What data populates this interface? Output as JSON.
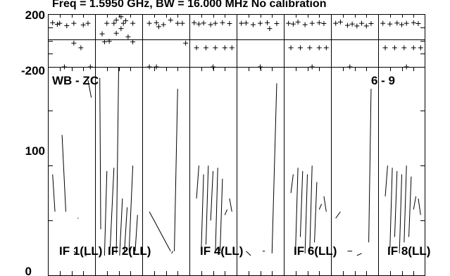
{
  "chart_data": {
    "type": "line",
    "title": "Freq = 1.5950 GHz, BW = 16.000 MHz  No calibration",
    "phase_panel": {
      "y_tick_labels": [
        "200",
        "-200"
      ],
      "ylim": [
        -200,
        200
      ]
    },
    "amp_panel": {
      "y_tick_labels": [
        "100",
        "0"
      ],
      "ylim": [
        0,
        190
      ]
    },
    "annotations": [
      "WB - ZC",
      "6 - 9"
    ],
    "panel_labels": [
      "IF 1(LL)",
      "IF 2(LL)",
      "IF 4(LL)",
      "IF 6(LL)",
      "IF 8(LL)"
    ],
    "channel_count": 8,
    "series": [
      {
        "phase": [
          [
            0.1,
            135
          ],
          [
            0.25,
            130
          ],
          [
            0.2,
            122
          ],
          [
            0.4,
            112
          ],
          [
            0.55,
            130
          ],
          [
            0.75,
            118
          ],
          [
            0.85,
            130
          ],
          [
            0.7,
            -55
          ],
          [
            0.55,
            -20
          ],
          [
            0.35,
            -200
          ],
          [
            0.9,
            -200
          ]
        ],
        "amplitude": [
          [
            0.1,
            92
          ],
          [
            0.15,
            58
          ],
          [
            0.3,
            128
          ],
          [
            0.38,
            58
          ],
          [
            0.55,
            22
          ],
          [
            0.6,
            20
          ],
          [
            0.63,
            52
          ],
          [
            0.65,
            52
          ],
          [
            0.78,
            18
          ],
          [
            0.82,
            18
          ],
          [
            0.85,
            178
          ],
          [
            0.92,
            162
          ],
          [
            0.95,
            168
          ]
        ]
      },
      {
        "phase": [
          [
            0.15,
            50
          ],
          [
            0.2,
            -10
          ],
          [
            0.3,
            -5
          ],
          [
            0.45,
            55
          ],
          [
            0.55,
            90
          ],
          [
            0.7,
            28
          ],
          [
            0.8,
            -10
          ],
          [
            0.25,
            130
          ],
          [
            0.4,
            130
          ],
          [
            0.6,
            130
          ],
          [
            0.8,
            130
          ],
          [
            0.55,
            180
          ],
          [
            0.45,
            155
          ],
          [
            0.65,
            150
          ]
        ],
        "amplitude": [
          [
            0.1,
            180
          ],
          [
            0.12,
            42
          ],
          [
            0.2,
            18
          ],
          [
            0.25,
            95
          ],
          [
            0.32,
            25
          ],
          [
            0.4,
            98
          ],
          [
            0.45,
            20
          ],
          [
            0.5,
            190
          ],
          [
            0.52,
            18
          ],
          [
            0.58,
            70
          ],
          [
            0.62,
            20
          ],
          [
            0.68,
            62
          ],
          [
            0.72,
            22
          ],
          [
            0.8,
            100
          ],
          [
            0.85,
            22
          ],
          [
            0.9,
            55
          ]
        ]
      },
      {
        "phase": [
          [
            0.15,
            130
          ],
          [
            0.3,
            135
          ],
          [
            0.45,
            120
          ],
          [
            0.6,
            155
          ],
          [
            0.75,
            130
          ],
          [
            0.85,
            130
          ],
          [
            0.35,
            105
          ],
          [
            0.92,
            -20
          ],
          [
            0.15,
            -200
          ],
          [
            0.3,
            -200
          ]
        ],
        "amplitude": [
          [
            0.15,
            58
          ],
          [
            0.6,
            22
          ],
          [
            0.62,
            20
          ],
          [
            0.65,
            22
          ],
          [
            0.68,
            22
          ],
          [
            0.75,
            170
          ],
          [
            0.85,
            172
          ]
        ]
      },
      {
        "phase": [
          [
            0.1,
            135
          ],
          [
            0.2,
            125
          ],
          [
            0.3,
            132
          ],
          [
            0.45,
            120
          ],
          [
            0.55,
            130
          ],
          [
            0.7,
            135
          ],
          [
            0.85,
            128
          ],
          [
            0.15,
            -55
          ],
          [
            0.35,
            -55
          ],
          [
            0.55,
            -55
          ],
          [
            0.75,
            -55
          ],
          [
            0.9,
            -55
          ],
          [
            0.5,
            -200
          ]
        ],
        "amplitude": [
          [
            0.15,
            70
          ],
          [
            0.2,
            100
          ],
          [
            0.25,
            22
          ],
          [
            0.3,
            92
          ],
          [
            0.35,
            28
          ],
          [
            0.4,
            100
          ],
          [
            0.45,
            50
          ],
          [
            0.5,
            95
          ],
          [
            0.55,
            20
          ],
          [
            0.6,
            98
          ],
          [
            0.65,
            22
          ],
          [
            0.7,
            88
          ],
          [
            0.75,
            55
          ],
          [
            0.8,
            60
          ],
          [
            0.85,
            70
          ],
          [
            0.9,
            58
          ]
        ]
      },
      {
        "phase": [
          [
            0.1,
            130
          ],
          [
            0.2,
            132
          ],
          [
            0.35,
            120
          ],
          [
            0.5,
            130
          ],
          [
            0.65,
            135
          ],
          [
            0.85,
            128
          ],
          [
            0.7,
            90
          ],
          [
            0.5,
            -200
          ]
        ],
        "amplitude": [
          [
            0.2,
            22
          ],
          [
            0.3,
            18
          ],
          [
            0.55,
            22
          ],
          [
            0.6,
            22
          ],
          [
            0.75,
            20
          ],
          [
            0.85,
            175
          ]
        ]
      },
      {
        "phase": [
          [
            0.1,
            130
          ],
          [
            0.2,
            125
          ],
          [
            0.3,
            140
          ],
          [
            0.45,
            120
          ],
          [
            0.6,
            130
          ],
          [
            0.75,
            135
          ],
          [
            0.85,
            128
          ],
          [
            0.15,
            -55
          ],
          [
            0.35,
            -55
          ],
          [
            0.55,
            -55
          ],
          [
            0.75,
            -55
          ],
          [
            0.9,
            -55
          ],
          [
            0.6,
            -200
          ]
        ],
        "amplitude": [
          [
            0.15,
            75
          ],
          [
            0.2,
            92
          ],
          [
            0.25,
            25
          ],
          [
            0.3,
            98
          ],
          [
            0.35,
            35
          ],
          [
            0.4,
            95
          ],
          [
            0.45,
            20
          ],
          [
            0.5,
            92
          ],
          [
            0.55,
            22
          ],
          [
            0.6,
            100
          ],
          [
            0.65,
            30
          ],
          [
            0.7,
            85
          ],
          [
            0.75,
            60
          ],
          [
            0.8,
            65
          ],
          [
            0.85,
            72
          ],
          [
            0.9,
            58
          ]
        ]
      },
      {
        "phase": [
          [
            0.1,
            130
          ],
          [
            0.2,
            140
          ],
          [
            0.35,
            115
          ],
          [
            0.45,
            125
          ],
          [
            0.55,
            110
          ],
          [
            0.65,
            130
          ],
          [
            0.75,
            110
          ],
          [
            0.85,
            128
          ],
          [
            0.4,
            -200
          ]
        ],
        "amplitude": [
          [
            0.1,
            52
          ],
          [
            0.2,
            58
          ],
          [
            0.35,
            22
          ],
          [
            0.45,
            22
          ],
          [
            0.55,
            18
          ],
          [
            0.65,
            20
          ],
          [
            0.8,
            30
          ],
          [
            0.85,
            170
          ]
        ]
      },
      {
        "phase": [
          [
            0.1,
            130
          ],
          [
            0.25,
            125
          ],
          [
            0.4,
            132
          ],
          [
            0.5,
            120
          ],
          [
            0.6,
            130
          ],
          [
            0.75,
            135
          ],
          [
            0.85,
            128
          ],
          [
            0.15,
            -55
          ],
          [
            0.35,
            -55
          ],
          [
            0.55,
            -55
          ],
          [
            0.75,
            -55
          ],
          [
            0.9,
            -55
          ],
          [
            0.6,
            -200
          ]
        ],
        "amplitude": [
          [
            0.15,
            72
          ],
          [
            0.2,
            100
          ],
          [
            0.25,
            25
          ],
          [
            0.3,
            98
          ],
          [
            0.35,
            35
          ],
          [
            0.4,
            95
          ],
          [
            0.45,
            20
          ],
          [
            0.5,
            92
          ],
          [
            0.55,
            30
          ],
          [
            0.6,
            100
          ],
          [
            0.65,
            35
          ],
          [
            0.7,
            90
          ],
          [
            0.75,
            60
          ],
          [
            0.8,
            72
          ],
          [
            0.85,
            70
          ],
          [
            0.9,
            55
          ]
        ]
      }
    ]
  }
}
